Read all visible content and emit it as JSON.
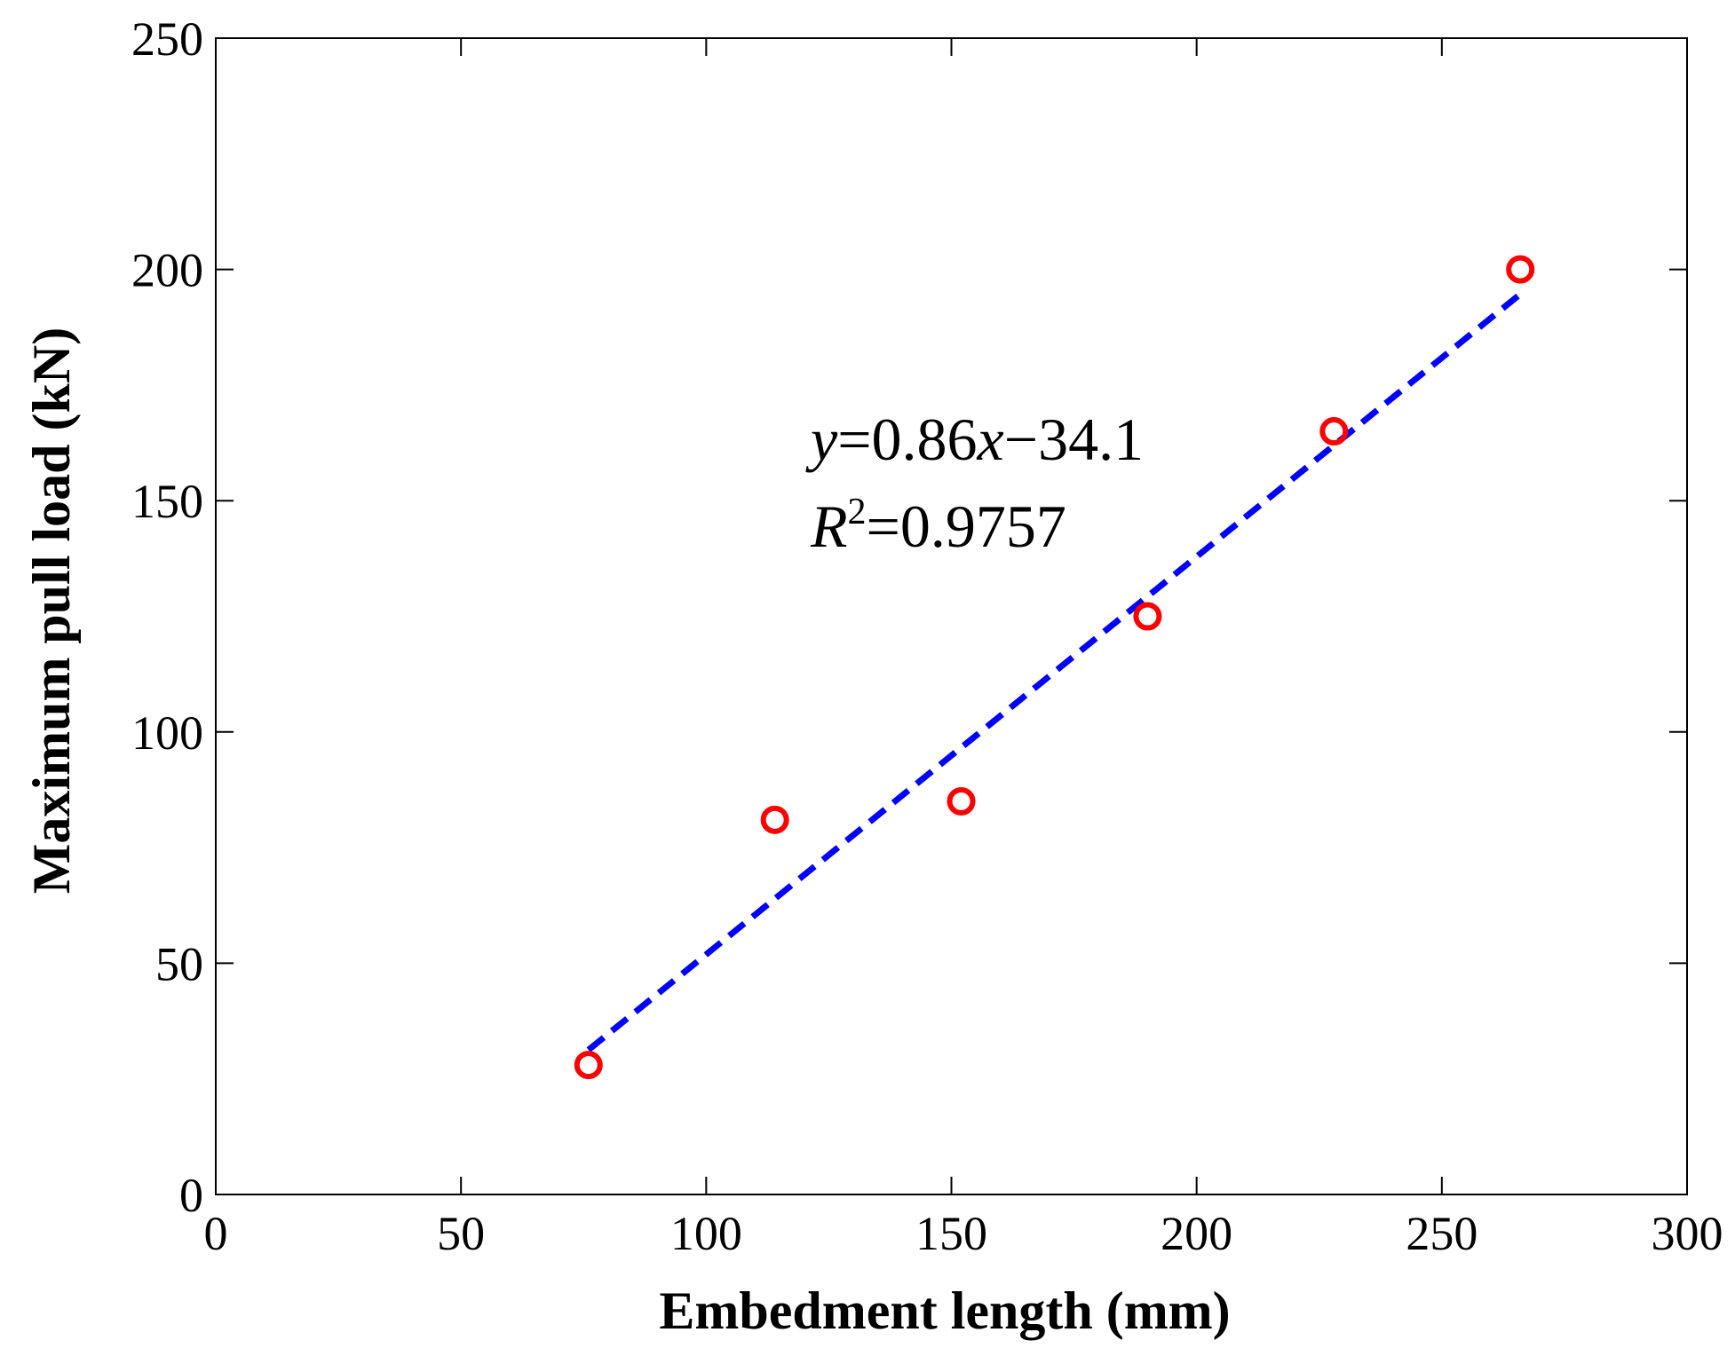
{
  "chart_data": {
    "type": "scatter",
    "xlabel": "Embedment length (mm)",
    "ylabel": "Maximum pull load (kN)",
    "xlim": [
      0,
      300
    ],
    "ylim": [
      0,
      250
    ],
    "xticks": [
      0,
      50,
      100,
      150,
      200,
      250,
      300
    ],
    "yticks": [
      0,
      50,
      100,
      150,
      200,
      250
    ],
    "grid": false,
    "series": [
      {
        "type": "scatter",
        "marker": "open-circle",
        "color": "#ff0000",
        "x": [
          76,
          114,
          152,
          190,
          228,
          266
        ],
        "y": [
          28,
          81,
          85,
          125,
          165,
          200
        ]
      },
      {
        "type": "line",
        "style": "dashed",
        "color": "#0000ff",
        "x": [
          76,
          266
        ],
        "y": [
          31.26,
          194.66
        ]
      }
    ],
    "annotation": {
      "eq_y": "y",
      "eq_mid": "=0.86",
      "eq_x": "x",
      "eq_end": "−34.1",
      "r_letter": "R",
      "r_sup": "2",
      "r_value": "=0.9757"
    }
  }
}
